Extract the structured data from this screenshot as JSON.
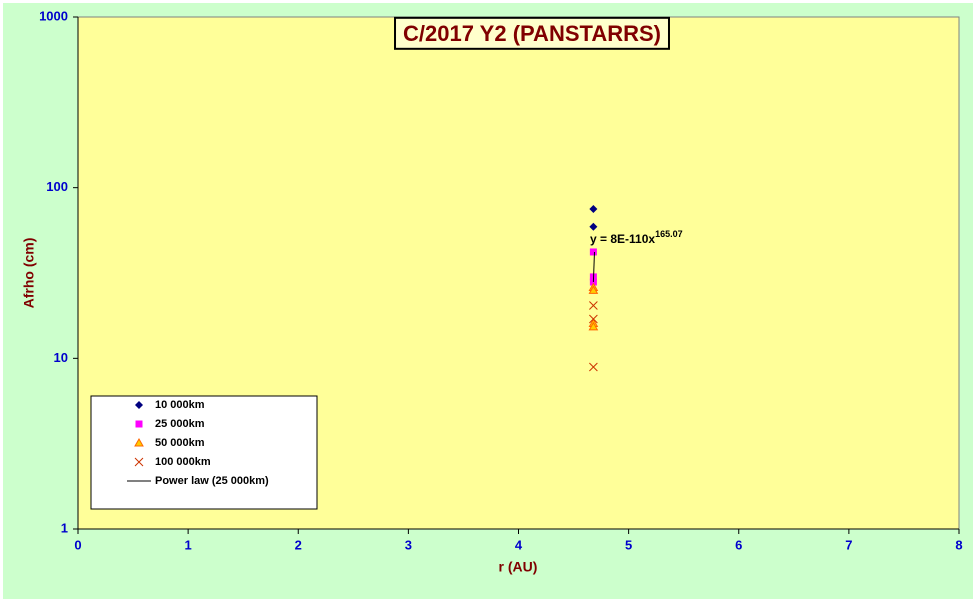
{
  "chart_data": {
    "type": "scatter",
    "title": "C/2017 Y2 (PANSTARRS)",
    "x_label": "r (AU)",
    "y_label": "Afrho (cm)",
    "xlim": [
      0,
      8
    ],
    "xticks": [
      0,
      1,
      2,
      3,
      4,
      5,
      6,
      7,
      8
    ],
    "ylim": [
      1,
      1000
    ],
    "yticks": [
      1,
      10,
      100,
      1000
    ],
    "y_scale": "log",
    "legend": "bottom-left",
    "equation": "y = 8E-110x",
    "equation_exponent": "165.07",
    "series": [
      {
        "name": "10 000km",
        "color": "#000080",
        "marker": "diamond",
        "x": [
          4.68,
          4.68
        ],
        "values": [
          75,
          59
        ]
      },
      {
        "name": "25 000km",
        "color": "#ff00ff",
        "marker": "square",
        "x": [
          4.68,
          4.68,
          4.68
        ],
        "values": [
          42,
          30,
          28
        ]
      },
      {
        "name": "50 000km",
        "color": "#ff6600",
        "marker": "triangle",
        "x": [
          4.68,
          4.68,
          4.68,
          4.68
        ],
        "values": [
          26,
          25,
          16,
          15.3
        ]
      },
      {
        "name": "100 000km",
        "color": "#cc3300",
        "marker": "x",
        "x": [
          4.68,
          4.68,
          4.68
        ],
        "values": [
          20.4,
          17,
          8.9
        ]
      },
      {
        "name": "Power law (25 000km)",
        "color": "#000000",
        "marker": "line",
        "x": [
          4.68,
          4.69
        ],
        "values": [
          28,
          42
        ]
      }
    ]
  }
}
